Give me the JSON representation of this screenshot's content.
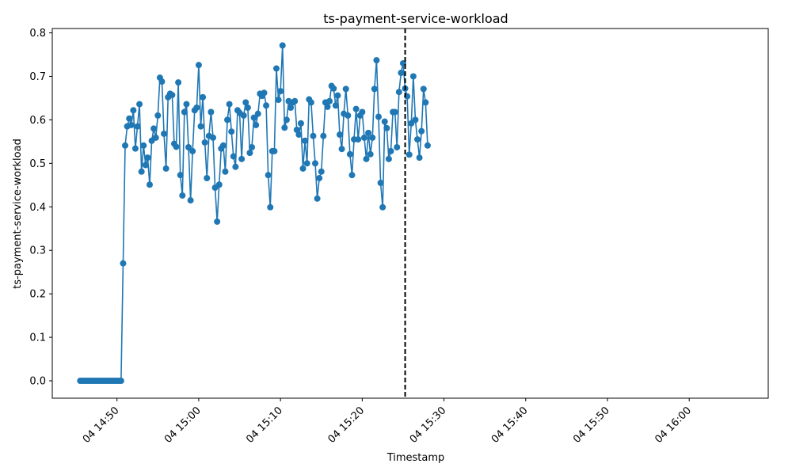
{
  "colors": {
    "series": "#1f77b4",
    "marker": "#1f77b4",
    "vline": "#000000",
    "axis": "#000000"
  },
  "chart_data": {
    "type": "line",
    "title": "ts-payment-service-workload",
    "xlabel": "Timestamp",
    "ylabel": "ts-payment-service-workload",
    "ylim": [
      -0.04,
      0.81
    ],
    "xlim": [
      "2024-01-04T14:42:05",
      "2024-01-04T16:09:40"
    ],
    "grid": false,
    "yticks": [
      0.0,
      0.1,
      0.2,
      0.3,
      0.4,
      0.5,
      0.6,
      0.7,
      0.8
    ],
    "ytick_labels": [
      "0.0",
      "0.1",
      "0.2",
      "0.3",
      "0.4",
      "0.5",
      "0.6",
      "0.7",
      "0.8"
    ],
    "xticks": [
      "2024-01-04T14:50:00",
      "2024-01-04T15:00:00",
      "2024-01-04T15:10:00",
      "2024-01-04T15:20:00",
      "2024-01-04T15:30:00",
      "2024-01-04T15:40:00",
      "2024-01-04T15:50:00",
      "2024-01-04T16:00:00"
    ],
    "xtick_labels": [
      "04 14:50",
      "04 15:00",
      "04 15:10",
      "04 15:20",
      "04 15:30",
      "04 15:40",
      "04 15:50",
      "04 16:00"
    ],
    "vline": "2024-01-04T15:25:15",
    "series": [
      {
        "start": "2024-01-04T14:45:30",
        "step_seconds": 15,
        "values": [
          0.0,
          0.0,
          0.0,
          0.0,
          0.0,
          0.0,
          0.0,
          0.0,
          0.0,
          0.0,
          0.0,
          0.0,
          0.0,
          0.0,
          0.0,
          0.0,
          0.0,
          0.0,
          0.0,
          0.0,
          0.0,
          0.27,
          0.541,
          0.585,
          0.603,
          0.588,
          0.622,
          0.534,
          0.585,
          0.636,
          0.481,
          0.541,
          0.496,
          0.513,
          0.451,
          0.552,
          0.58,
          0.559,
          0.61,
          0.697,
          0.688,
          0.568,
          0.488,
          0.652,
          0.66,
          0.657,
          0.545,
          0.538,
          0.686,
          0.473,
          0.426,
          0.618,
          0.636,
          0.537,
          0.415,
          0.528,
          0.622,
          0.628,
          0.726,
          0.585,
          0.652,
          0.548,
          0.466,
          0.563,
          0.618,
          0.559,
          0.444,
          0.366,
          0.451,
          0.534,
          0.541,
          0.481,
          0.6,
          0.636,
          0.573,
          0.516,
          0.492,
          0.622,
          0.616,
          0.51,
          0.61,
          0.64,
          0.628,
          0.524,
          0.537,
          0.605,
          0.588,
          0.614,
          0.66,
          0.655,
          0.662,
          0.633,
          0.473,
          0.399,
          0.528,
          0.528,
          0.718,
          0.646,
          0.666,
          0.771,
          0.582,
          0.6,
          0.643,
          0.628,
          0.64,
          0.643,
          0.577,
          0.566,
          0.592,
          0.488,
          0.552,
          0.5,
          0.647,
          0.64,
          0.563,
          0.5,
          0.419,
          0.466,
          0.481,
          0.563,
          0.64,
          0.63,
          0.643,
          0.678,
          0.672,
          0.633,
          0.656,
          0.566,
          0.533,
          0.614,
          0.671,
          0.61,
          0.521,
          0.473,
          0.555,
          0.625,
          0.555,
          0.61,
          0.618,
          0.559,
          0.51,
          0.57,
          0.521,
          0.559,
          0.671,
          0.737,
          0.607,
          0.455,
          0.399,
          0.596,
          0.581,
          0.51,
          0.528,
          0.618,
          0.618,
          0.537,
          0.664,
          0.708,
          0.73,
          0.672,
          0.654,
          0.52,
          0.592,
          0.7,
          0.6,
          0.555,
          0.513,
          0.574,
          0.671,
          0.64,
          0.541
        ]
      }
    ]
  }
}
